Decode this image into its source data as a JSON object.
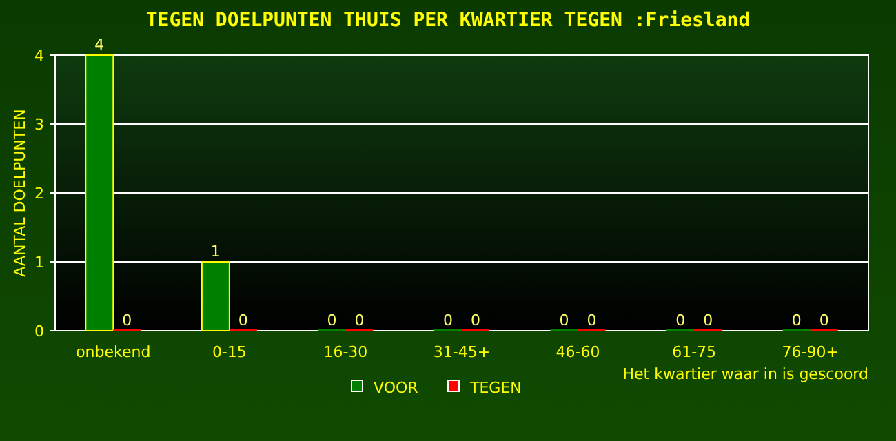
{
  "chart_data": {
    "type": "bar",
    "title": "TEGEN DOELPUNTEN THUIS PER KWARTIER TEGEN :Friesland",
    "categories": [
      "onbekend",
      "0-15",
      "16-30",
      "31-45+",
      "46-60",
      "61-75",
      "76-90+"
    ],
    "series": [
      {
        "name": "VOOR",
        "color": "#008000",
        "values": [
          4,
          1,
          0,
          0,
          0,
          0,
          0
        ]
      },
      {
        "name": "TEGEN",
        "color": "#ff0000",
        "values": [
          0,
          0,
          0,
          0,
          0,
          0,
          0
        ]
      }
    ],
    "ylabel": "AANTAL DOELPUNTEN",
    "xlabel": "Het kwartier waar in is gescoord",
    "ylim": [
      0,
      4
    ],
    "yticks": [
      0,
      1,
      2,
      3,
      4
    ],
    "grid": "y",
    "legend": "bottom",
    "data_labels": true
  }
}
